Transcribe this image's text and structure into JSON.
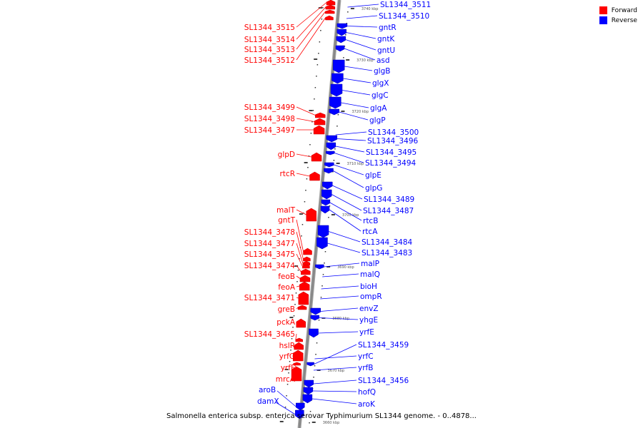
{
  "caption": "Salmonella enterica subsp. enterica serovar Typhimurium SL1344 genome. - 0..4878...",
  "legend": [
    {
      "label": "Forward",
      "color": "#ff0000"
    },
    {
      "label": "Reverse",
      "color": "#0000ff"
    }
  ],
  "colors": {
    "forward": "#ff0000",
    "reverse": "#0000ff",
    "backbone": "#888888"
  },
  "ticks": [
    "3740 kbp",
    "3730 kbp",
    "3720 kbp",
    "3710 kbp",
    "3700 kbp",
    "3690 kbp",
    "3680 kbp",
    "3670 kbp",
    "3660 kbp"
  ],
  "forward_genes": [
    "SL1344_3515",
    "SL1344_3514",
    "SL1344_3513",
    "SL1344_3512",
    "SL1344_3499",
    "SL1344_3498",
    "SL1344_3497",
    "glpD",
    "rtcR",
    "malT",
    "gntT",
    "SL1344_3478",
    "SL1344_3477",
    "SL1344_3475",
    "SL1344_3474",
    "feoB",
    "feoA",
    "SL1344_3471",
    "greB",
    "pckA",
    "SL1344_3465",
    "hslR",
    "yrfG",
    "yrfF",
    "mrcA"
  ],
  "reverse_genes": [
    "SL1344_3511",
    "SL1344_3510",
    "gntR",
    "gntK",
    "gntU",
    "asd",
    "glgB",
    "glgX",
    "glgC",
    "glgA",
    "glgP",
    "SL1344_3500",
    "SL1344_3496",
    "SL1344_3495",
    "SL1344_3494",
    "glpE",
    "glpG",
    "SL1344_3489",
    "SL1344_3487",
    "rtcB",
    "rtcA",
    "SL1344_3484",
    "SL1344_3483",
    "malP",
    "malQ",
    "bioH",
    "ompR",
    "envZ",
    "yhgE",
    "yrfE",
    "SL1344_3459",
    "yrfC",
    "yrfB",
    "SL1344_3456",
    "hofQ",
    "aroK",
    "aroB",
    "damX"
  ]
}
